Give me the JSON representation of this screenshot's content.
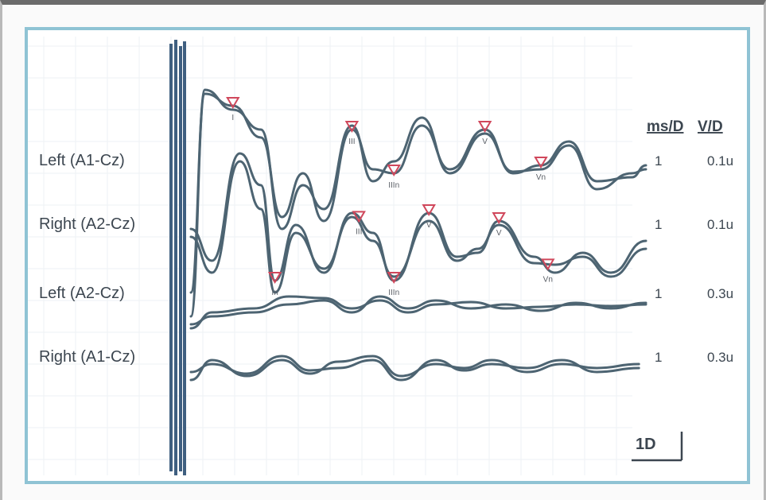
{
  "chart_data": {
    "type": "line",
    "title": "",
    "xlabel": "",
    "ylabel": "",
    "column_headers": {
      "ms_per_div": "ms/D",
      "volts_per_div": "V/D"
    },
    "scale_bar_label": "1D",
    "grid": true,
    "traces": [
      {
        "label": "Left (A1-Cz)",
        "ms_per_div": "1",
        "volts_per_div": "0.1u",
        "peak_markers": [
          {
            "label": "I",
            "x": 0.6
          },
          {
            "label": "III",
            "x": 2.3
          },
          {
            "label": "IIIn",
            "x": 2.9
          },
          {
            "label": "V",
            "x": 4.2
          },
          {
            "label": "Vn",
            "x": 5.0
          }
        ]
      },
      {
        "label": "Right (A2-Cz)",
        "ms_per_div": "1",
        "volts_per_div": "0.1u",
        "peak_markers": [
          {
            "label": "In",
            "x": 1.2
          },
          {
            "label": "III",
            "x": 2.4
          },
          {
            "label": "IIIn",
            "x": 2.9
          },
          {
            "label": "V",
            "x": 3.4
          },
          {
            "label": "V",
            "x": 4.4
          },
          {
            "label": "Vn",
            "x": 5.1
          }
        ]
      },
      {
        "label": "Left (A2-Cz)",
        "ms_per_div": "1",
        "volts_per_div": "0.3u",
        "peak_markers": []
      },
      {
        "label": "Right (A1-Cz)",
        "ms_per_div": "1",
        "volts_per_div": "0.3u",
        "peak_markers": []
      }
    ],
    "colors": {
      "trace": "#4d6472",
      "marker": "#d0475b",
      "grid": "#eef2f4",
      "stimulus": "#3f5f80"
    }
  }
}
